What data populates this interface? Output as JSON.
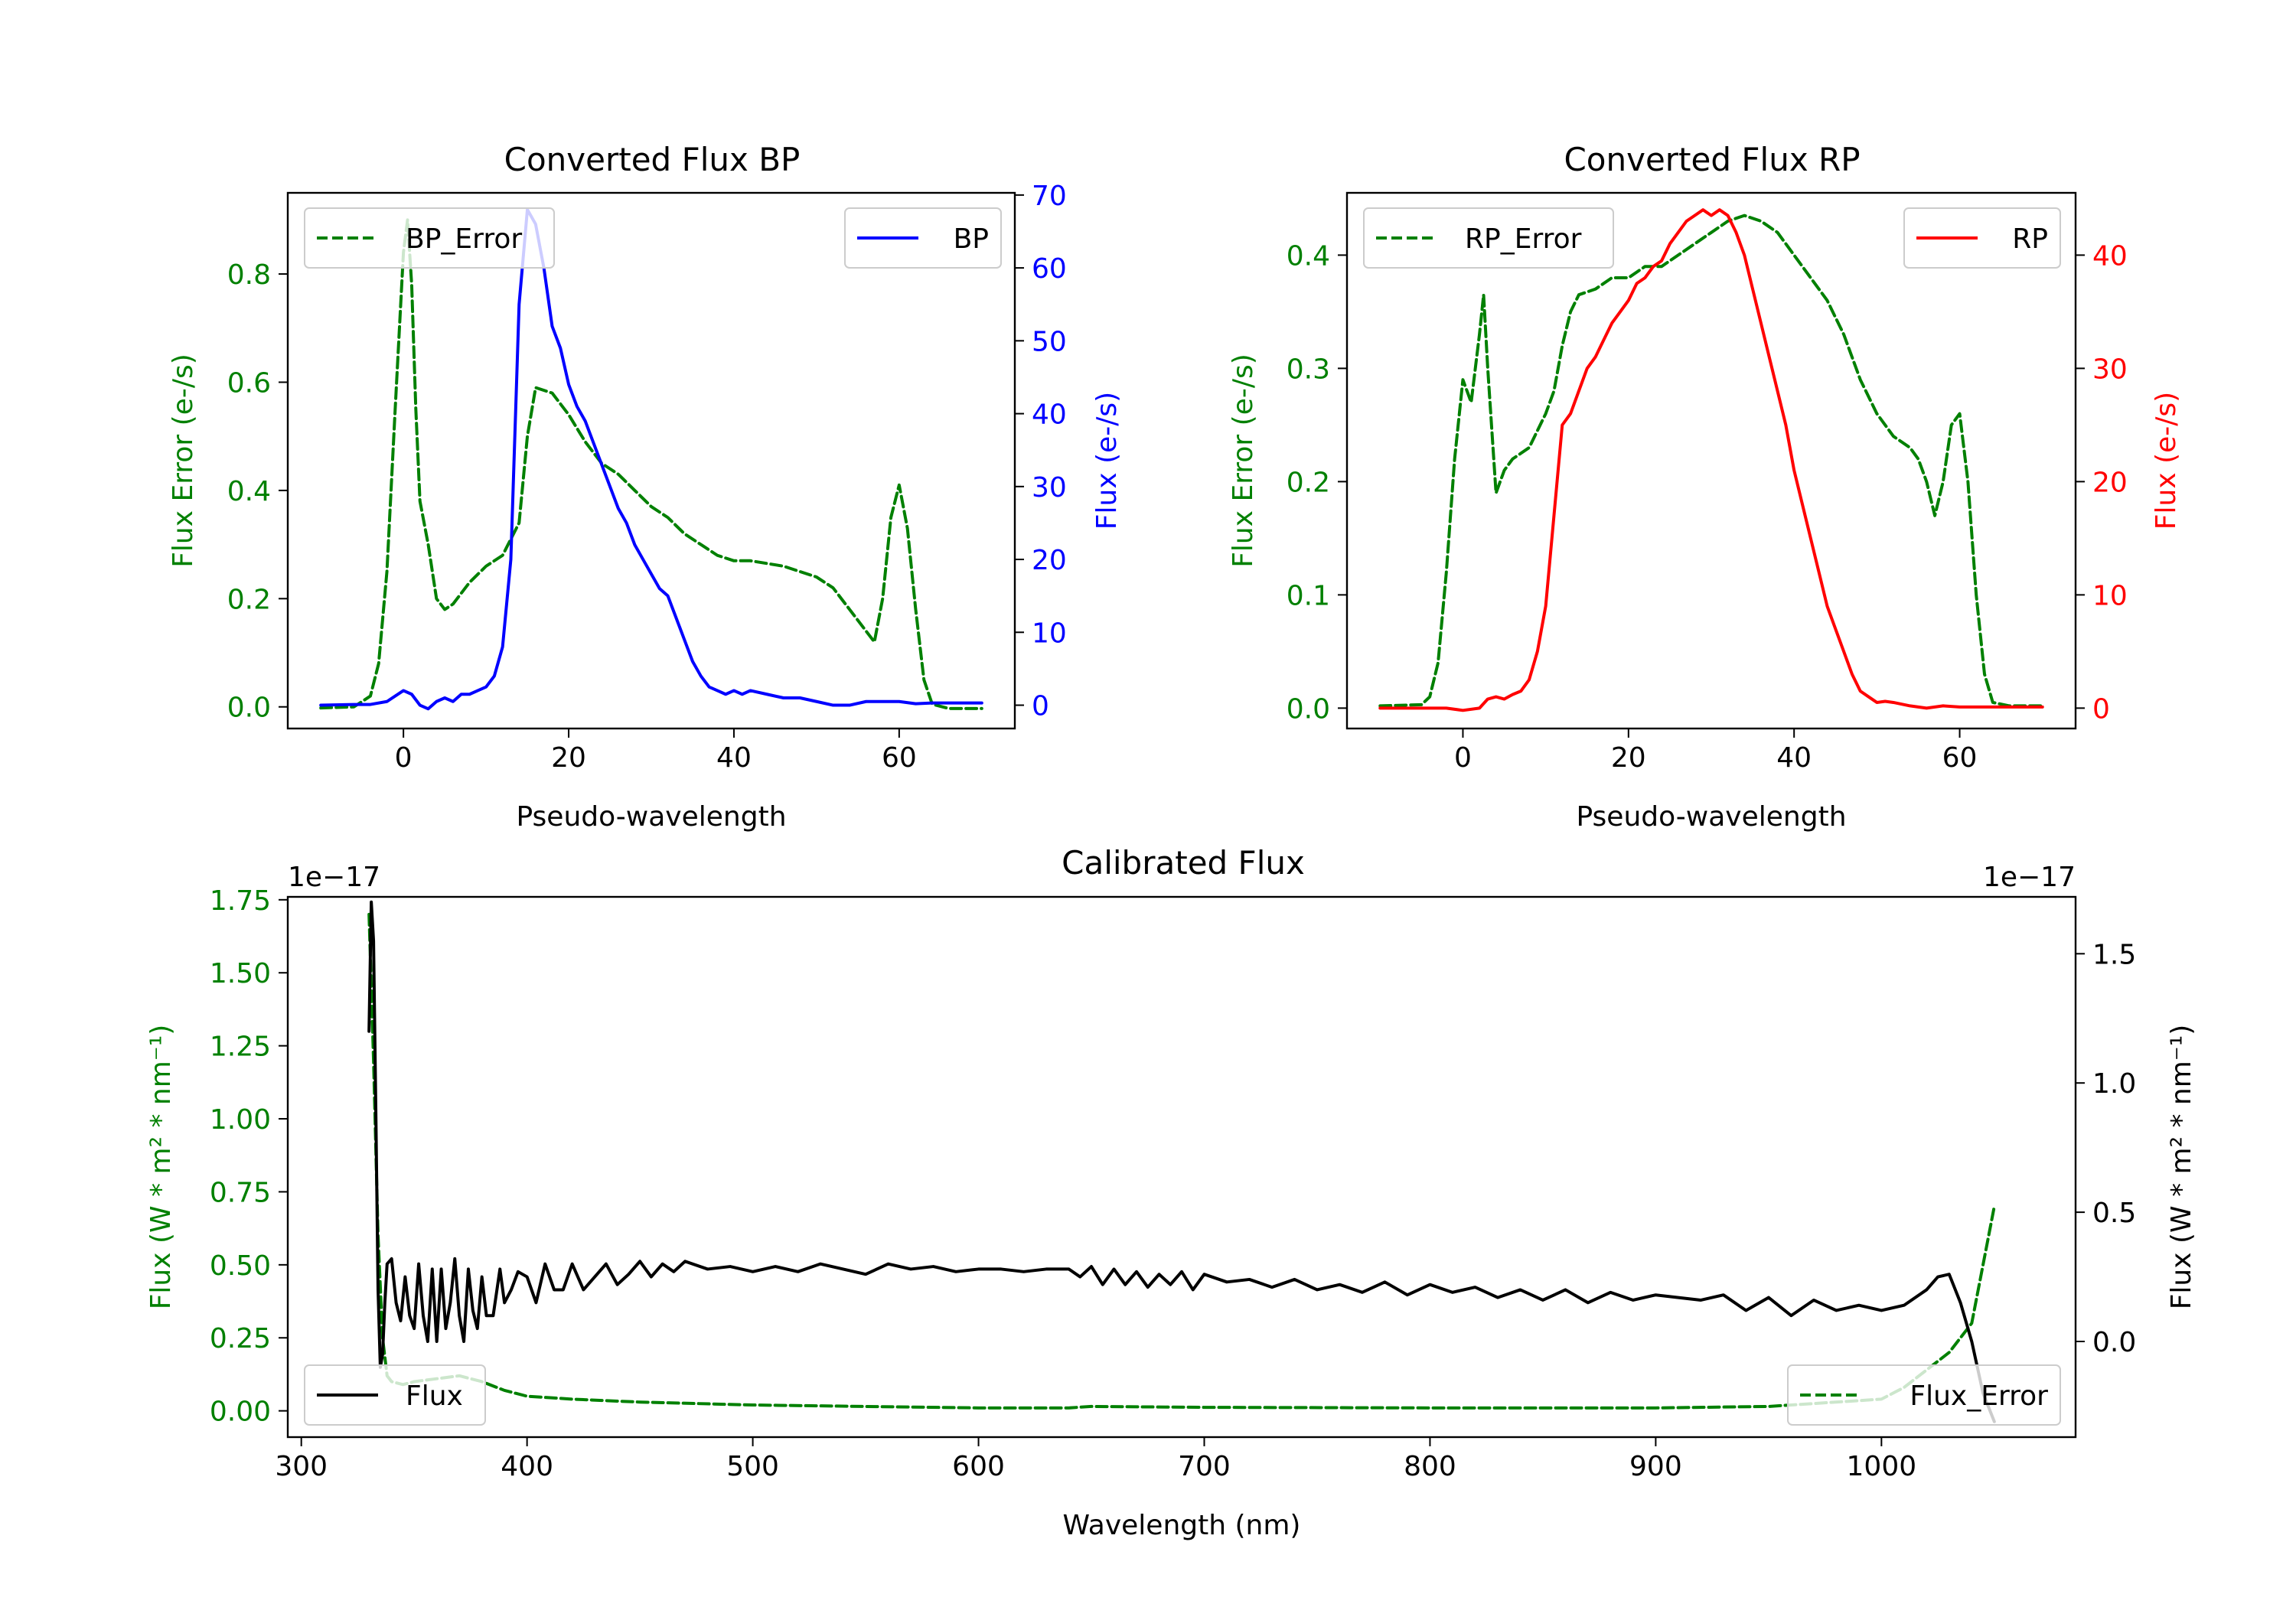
{
  "colors": {
    "bp_error": "#008000",
    "bp": "#0000ff",
    "rp_error": "#008000",
    "rp": "#ff0000",
    "flux": "#000000",
    "flux_error": "#008000",
    "axis": "#000000"
  },
  "chart_data": [
    {
      "id": "bp",
      "type": "line",
      "title": "Converted Flux BP",
      "xlabel": "Pseudo-wavelength",
      "ylabel_left": "Flux Error (e-/s)",
      "ylabel_right": "Flux (e-/s)",
      "xlim": [
        -14,
        74
      ],
      "ylim_left": [
        -0.04,
        0.95
      ],
      "ylim_right": [
        -3.2,
        70.3
      ],
      "xticks": [
        0,
        20,
        40,
        60
      ],
      "xtick_labels": [
        "0",
        "20",
        "40",
        "60"
      ],
      "yticks_left": [
        0.0,
        0.2,
        0.4,
        0.6,
        0.8
      ],
      "ytick_labels_left": [
        "0.0",
        "0.2",
        "0.4",
        "0.6",
        "0.8"
      ],
      "yticks_right": [
        0,
        10,
        20,
        30,
        40,
        50,
        60,
        70
      ],
      "ytick_labels_right": [
        "0",
        "10",
        "20",
        "30",
        "40",
        "50",
        "60",
        "70"
      ],
      "legend_left": {
        "label": "BP_Error",
        "position": "upper-left"
      },
      "legend_right": {
        "label": "BP",
        "position": "upper-right"
      },
      "series": [
        {
          "name": "BP_Error",
          "axis": "left",
          "style": "dashed",
          "color_key": "bp_error",
          "x": [
            -10,
            -6,
            -4,
            -3,
            -2,
            -1,
            0,
            0.5,
            1,
            1.5,
            2,
            3,
            4,
            5,
            6,
            7,
            8,
            10,
            12,
            14,
            15,
            16,
            18,
            20,
            22,
            24,
            26,
            28,
            30,
            32,
            34,
            36,
            38,
            40,
            42,
            44,
            46,
            48,
            50,
            52,
            54,
            55,
            56,
            57,
            58,
            59,
            60,
            61,
            62,
            63,
            64,
            66,
            70
          ],
          "y": [
            -0.002,
            0.0,
            0.02,
            0.08,
            0.25,
            0.55,
            0.84,
            0.9,
            0.78,
            0.55,
            0.38,
            0.3,
            0.2,
            0.18,
            0.19,
            0.21,
            0.23,
            0.26,
            0.28,
            0.34,
            0.5,
            0.59,
            0.58,
            0.54,
            0.49,
            0.45,
            0.43,
            0.4,
            0.37,
            0.35,
            0.32,
            0.3,
            0.28,
            0.27,
            0.27,
            0.265,
            0.26,
            0.25,
            0.24,
            0.22,
            0.18,
            0.16,
            0.14,
            0.12,
            0.2,
            0.35,
            0.41,
            0.33,
            0.18,
            0.05,
            0.005,
            -0.003,
            -0.003
          ]
        },
        {
          "name": "BP",
          "axis": "right",
          "style": "solid",
          "color_key": "bp",
          "x": [
            -10,
            -6,
            -4,
            -2,
            0,
            1,
            2,
            3,
            4,
            5,
            6,
            7,
            8,
            9,
            10,
            11,
            12,
            13,
            14,
            15,
            16,
            17,
            18,
            19,
            20,
            21,
            22,
            23,
            24,
            25,
            26,
            27,
            28,
            29,
            30,
            31,
            32,
            33,
            34,
            35,
            36,
            37,
            38,
            39,
            40,
            41,
            42,
            44,
            46,
            48,
            50,
            52,
            54,
            56,
            58,
            60,
            62,
            64,
            66,
            70
          ],
          "y": [
            0,
            0.1,
            0.1,
            0.5,
            2.0,
            1.5,
            0,
            -0.5,
            0.5,
            1.0,
            0.5,
            1.5,
            1.5,
            2.0,
            2.5,
            4.0,
            8.0,
            20,
            55,
            68,
            66,
            60,
            52,
            49,
            44,
            41,
            39,
            36,
            33,
            30,
            27,
            25,
            22,
            20,
            18,
            16,
            15,
            12,
            9,
            6,
            4,
            2.5,
            2,
            1.5,
            2,
            1.5,
            2,
            1.5,
            1,
            1,
            0.5,
            0,
            0,
            0.5,
            0.5,
            0.5,
            0.2,
            0.3,
            0.3,
            0.3
          ]
        }
      ]
    },
    {
      "id": "rp",
      "type": "line",
      "title": "Converted Flux RP",
      "xlabel": "Pseudo-wavelength",
      "ylabel_left": "Flux Error (e-/s)",
      "ylabel_right": "Flux (e-/s)",
      "xlim": [
        -14,
        74
      ],
      "ylim_left": [
        -0.018,
        0.455
      ],
      "ylim_right": [
        -1.8,
        45.5
      ],
      "xticks": [
        0,
        20,
        40,
        60
      ],
      "xtick_labels": [
        "0",
        "20",
        "40",
        "60"
      ],
      "yticks_left": [
        0.0,
        0.1,
        0.2,
        0.3,
        0.4
      ],
      "ytick_labels_left": [
        "0.0",
        "0.1",
        "0.2",
        "0.3",
        "0.4"
      ],
      "yticks_right": [
        0,
        10,
        20,
        30,
        40
      ],
      "ytick_labels_right": [
        "0",
        "10",
        "20",
        "30",
        "40"
      ],
      "legend_left": {
        "label": "RP_Error",
        "position": "upper-left"
      },
      "legend_right": {
        "label": "RP",
        "position": "upper-right"
      },
      "series": [
        {
          "name": "RP_Error",
          "axis": "left",
          "style": "dashed",
          "color_key": "rp_error",
          "x": [
            -10,
            -5,
            -4,
            -3,
            -2,
            -1,
            0,
            0.5,
            1,
            1.5,
            2,
            2.5,
            3,
            4,
            5,
            6,
            7,
            8,
            10,
            11,
            12,
            13,
            14,
            16,
            18,
            20,
            22,
            24,
            26,
            28,
            30,
            32,
            34,
            36,
            38,
            40,
            42,
            44,
            46,
            48,
            50,
            52,
            54,
            55,
            56,
            57,
            58,
            59,
            60,
            61,
            62,
            63,
            64,
            66,
            70
          ],
          "y": [
            0.002,
            0.003,
            0.01,
            0.04,
            0.12,
            0.22,
            0.29,
            0.28,
            0.27,
            0.3,
            0.33,
            0.365,
            0.3,
            0.19,
            0.21,
            0.22,
            0.225,
            0.23,
            0.26,
            0.28,
            0.32,
            0.35,
            0.365,
            0.37,
            0.38,
            0.38,
            0.39,
            0.39,
            0.4,
            0.41,
            0.42,
            0.43,
            0.435,
            0.43,
            0.42,
            0.4,
            0.38,
            0.36,
            0.33,
            0.29,
            0.26,
            0.24,
            0.23,
            0.22,
            0.2,
            0.17,
            0.2,
            0.25,
            0.26,
            0.2,
            0.1,
            0.03,
            0.005,
            0.002,
            0.002
          ]
        },
        {
          "name": "RP",
          "axis": "right",
          "style": "solid",
          "color_key": "rp",
          "x": [
            -10,
            -6,
            -2,
            0,
            2,
            3,
            4,
            5,
            6,
            7,
            8,
            9,
            10,
            11,
            12,
            13,
            14,
            15,
            16,
            17,
            18,
            19,
            20,
            21,
            22,
            23,
            24,
            25,
            26,
            27,
            28,
            29,
            30,
            31,
            32,
            33,
            34,
            35,
            36,
            37,
            38,
            39,
            40,
            41,
            42,
            43,
            44,
            45,
            46,
            47,
            48,
            49,
            50,
            51,
            52,
            54,
            56,
            58,
            60,
            62,
            66,
            70
          ],
          "y": [
            0,
            0,
            0,
            -0.2,
            0,
            0.8,
            1,
            0.8,
            1.2,
            1.5,
            2.5,
            5,
            9,
            17,
            25,
            26,
            28,
            30,
            31,
            32.5,
            34,
            35,
            36,
            37.5,
            38,
            39,
            39.5,
            41,
            42,
            43,
            43.5,
            44,
            43.5,
            44,
            43.5,
            42,
            40,
            37,
            34,
            31,
            28,
            25,
            21,
            18,
            15,
            12,
            9,
            7,
            5,
            3,
            1.5,
            1,
            0.5,
            0.6,
            0.5,
            0.2,
            0,
            0.2,
            0.1,
            0.1,
            0.1,
            0.1
          ]
        }
      ]
    },
    {
      "id": "calibrated",
      "type": "line",
      "title": "Calibrated Flux",
      "xlabel": "Wavelength (nm)",
      "ylabel_left": "Flux (W * m² * nm⁻¹)",
      "ylabel_right": "Flux (W * m² * nm⁻¹)",
      "offset_text_left": "1e−17",
      "offset_text_right": "1e−17",
      "xlim": [
        294,
        1086
      ],
      "ylim_left": [
        -0.09,
        1.76
      ],
      "ylim_right": [
        -0.37,
        1.72
      ],
      "xticks": [
        300,
        400,
        500,
        600,
        700,
        800,
        900,
        1000
      ],
      "xtick_labels": [
        "300",
        "400",
        "500",
        "600",
        "700",
        "800",
        "900",
        "1000"
      ],
      "yticks_left": [
        0.0,
        0.25,
        0.5,
        0.75,
        1.0,
        1.25,
        1.5,
        1.75
      ],
      "ytick_labels_left": [
        "0.00",
        "0.25",
        "0.50",
        "0.75",
        "1.00",
        "1.25",
        "1.50",
        "1.75"
      ],
      "yticks_right": [
        0.0,
        0.5,
        1.0,
        1.5
      ],
      "ytick_labels_right": [
        "0.0",
        "0.5",
        "1.0",
        "1.5"
      ],
      "legend_left": {
        "label": "Flux",
        "position": "lower-left"
      },
      "legend_right": {
        "label": "Flux_Error",
        "position": "lower-right"
      },
      "series": [
        {
          "name": "Flux_Error",
          "axis": "left",
          "style": "dashed",
          "color_key": "flux_error",
          "x": [
            330,
            332,
            334,
            336,
            338,
            340,
            345,
            350,
            360,
            370,
            380,
            390,
            400,
            420,
            450,
            500,
            550,
            600,
            640,
            650,
            700,
            800,
            900,
            950,
            1000,
            1010,
            1020,
            1030,
            1040,
            1045,
            1050
          ],
          "y": [
            1.7,
            1.2,
            0.6,
            0.25,
            0.12,
            0.1,
            0.09,
            0.1,
            0.11,
            0.12,
            0.1,
            0.07,
            0.05,
            0.04,
            0.03,
            0.02,
            0.015,
            0.01,
            0.01,
            0.015,
            0.012,
            0.01,
            0.01,
            0.015,
            0.04,
            0.08,
            0.14,
            0.2,
            0.3,
            0.5,
            0.7
          ]
        },
        {
          "name": "Flux",
          "axis": "right",
          "style": "solid",
          "color_key": "flux",
          "x": [
            330,
            331,
            332,
            333,
            334,
            335,
            336,
            337,
            338,
            340,
            342,
            344,
            346,
            348,
            350,
            352,
            354,
            356,
            358,
            360,
            362,
            364,
            366,
            368,
            370,
            372,
            374,
            376,
            378,
            380,
            382,
            385,
            388,
            390,
            393,
            396,
            400,
            404,
            408,
            412,
            416,
            420,
            425,
            430,
            435,
            440,
            445,
            450,
            455,
            460,
            465,
            470,
            480,
            490,
            500,
            510,
            520,
            530,
            540,
            550,
            560,
            570,
            580,
            590,
            600,
            610,
            620,
            630,
            640,
            645,
            650,
            655,
            660,
            665,
            670,
            675,
            680,
            685,
            690,
            695,
            700,
            710,
            720,
            730,
            740,
            750,
            760,
            770,
            780,
            790,
            800,
            810,
            820,
            830,
            840,
            850,
            860,
            870,
            880,
            890,
            900,
            910,
            920,
            930,
            940,
            950,
            960,
            970,
            980,
            990,
            1000,
            1010,
            1020,
            1025,
            1030,
            1035,
            1040,
            1045,
            1050
          ],
          "y": [
            1.2,
            1.7,
            1.55,
            0.9,
            0.2,
            -0.1,
            -0.05,
            0.15,
            0.3,
            0.32,
            0.15,
            0.08,
            0.25,
            0.1,
            0.05,
            0.3,
            0.1,
            0.0,
            0.28,
            0.0,
            0.28,
            0.05,
            0.15,
            0.32,
            0.1,
            0.0,
            0.28,
            0.12,
            0.05,
            0.25,
            0.1,
            0.1,
            0.28,
            0.15,
            0.2,
            0.27,
            0.25,
            0.15,
            0.3,
            0.2,
            0.2,
            0.3,
            0.2,
            0.25,
            0.3,
            0.22,
            0.26,
            0.31,
            0.25,
            0.3,
            0.27,
            0.31,
            0.28,
            0.29,
            0.27,
            0.29,
            0.27,
            0.3,
            0.28,
            0.26,
            0.3,
            0.28,
            0.29,
            0.27,
            0.28,
            0.28,
            0.27,
            0.28,
            0.28,
            0.25,
            0.29,
            0.22,
            0.28,
            0.22,
            0.27,
            0.21,
            0.26,
            0.22,
            0.27,
            0.2,
            0.26,
            0.23,
            0.24,
            0.21,
            0.24,
            0.2,
            0.22,
            0.19,
            0.23,
            0.18,
            0.22,
            0.19,
            0.21,
            0.17,
            0.2,
            0.16,
            0.2,
            0.15,
            0.19,
            0.16,
            0.18,
            0.17,
            0.16,
            0.18,
            0.12,
            0.17,
            0.1,
            0.16,
            0.12,
            0.14,
            0.12,
            0.14,
            0.2,
            0.25,
            0.26,
            0.15,
            0.0,
            -0.2,
            -0.31
          ]
        }
      ]
    }
  ]
}
